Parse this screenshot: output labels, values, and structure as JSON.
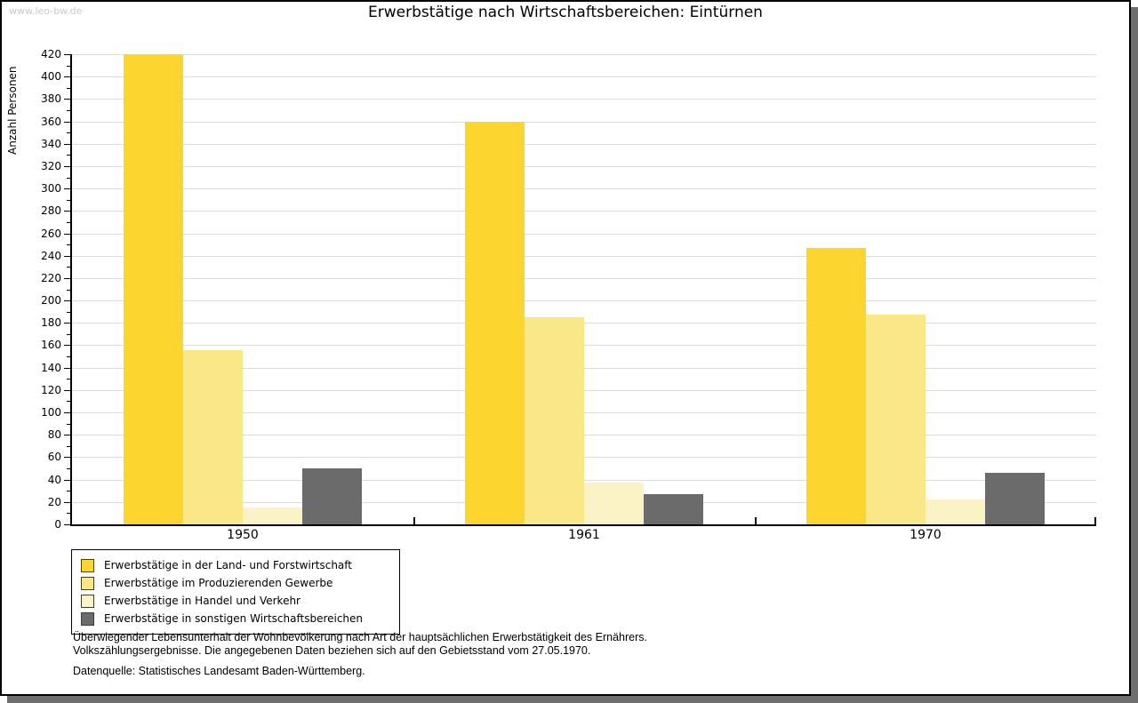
{
  "watermark": "www.leo-bw.de",
  "title": "Erwerbstätige nach Wirtschaftsbereichen: Eintürnen",
  "chart_data": {
    "type": "bar",
    "title": "Erwerbstätige nach Wirtschaftsbereichen: Eintürnen",
    "xlabel": "",
    "ylabel": "Anzahl Personen",
    "ylim": [
      0,
      420
    ],
    "ytick_step": 20,
    "minor_tick_step": 10,
    "yticks": [
      0,
      20,
      40,
      60,
      80,
      100,
      120,
      140,
      160,
      180,
      200,
      220,
      240,
      260,
      280,
      300,
      320,
      340,
      360,
      380,
      400,
      420
    ],
    "grid": true,
    "legend_position": "bottom-left",
    "categories": [
      "1950",
      "1961",
      "1970"
    ],
    "series": [
      {
        "name": "Erwerbstätige in der Land- und Forstwirtschaft",
        "color": "#fcd62f",
        "values": [
          420,
          360,
          247
        ]
      },
      {
        "name": "Erwerbstätige im Produzierenden Gewerbe",
        "color": "#fae787",
        "values": [
          156,
          185,
          187
        ]
      },
      {
        "name": "Erwerbstätige in Handel und Verkehr",
        "color": "#fbf3c5",
        "values": [
          15,
          37,
          22
        ]
      },
      {
        "name": "Erwerbstätige in sonstigen Wirtschaftsbereichen",
        "color": "#6b6b6b",
        "values": [
          50,
          27,
          46
        ]
      }
    ]
  },
  "footer": {
    "line1": "Überwiegender Lebensunterhalt der Wohnbevölkerung nach Art der hauptsächlichen Erwerbstätigkeit des Ernährers.",
    "line2": "Volkszählungsergebnisse. Die angegebenen Daten beziehen sich auf den Gebietsstand vom 27.05.1970.",
    "source": "Datenquelle: Statistisches Landesamt Baden-Württemberg."
  }
}
